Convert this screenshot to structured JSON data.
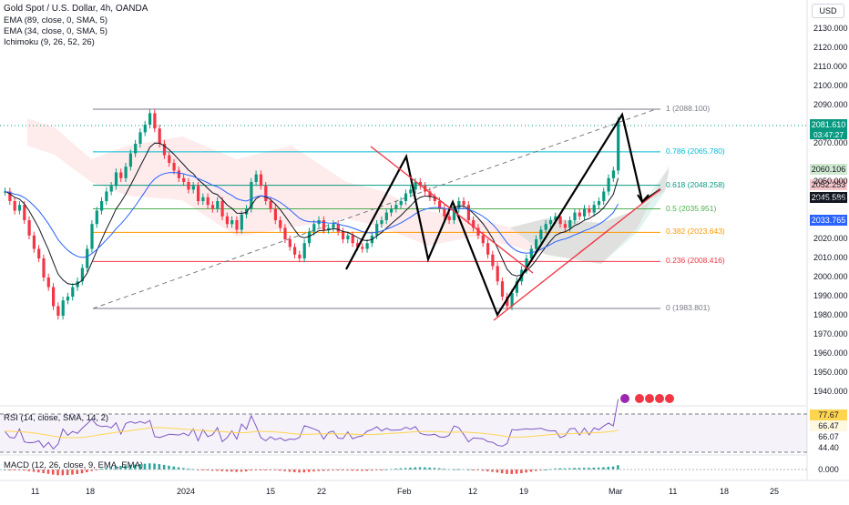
{
  "header": {
    "title": "Gold Spot / U.S. Dollar, 4h, OANDA",
    "currency": "USD",
    "indicators": [
      "EMA (89, close, 0, SMA, 5)",
      "EMA (34, close, 0, SMA, 5)",
      "Ichimoku (9, 26, 52, 26)"
    ]
  },
  "price_axis": {
    "labels": [
      "2130.000",
      "2120.000",
      "2110.000",
      "2100.000",
      "2090.000",
      "2070.000",
      "2050.000",
      "2040.000",
      "2020.000",
      "2010.000",
      "2000.000",
      "1990.000",
      "1980.000",
      "1970.000",
      "1960.000",
      "1950.000",
      "1940.000"
    ]
  },
  "price_tags": {
    "last": {
      "value": "2081.610",
      "timer": "03:47:27",
      "color": "#089981"
    },
    "green": {
      "value": "2060.106",
      "color": "#cfe8d0"
    },
    "red": {
      "value": "2052.253",
      "color": "#f7c6c8"
    },
    "black": {
      "value": "2045.586",
      "color": "#131722"
    },
    "blue": {
      "value": "2033.765",
      "color": "#2962ff"
    }
  },
  "time_axis": {
    "labels": [
      "11",
      "18",
      "2024",
      "15",
      "22",
      "Feb",
      "12",
      "19",
      "Mar",
      "11",
      "18",
      "25"
    ]
  },
  "rsi": {
    "label": "RSI (14, close, SMA, 14, 2)",
    "tags": {
      "value": "77.67",
      "sma": "66.47",
      "upper": "66.07",
      "lower": "44.40"
    }
  },
  "macd": {
    "label": "MACD (12, 26, close, 9, EMA, EMA)",
    "zero": "0.000"
  },
  "chart_data": {
    "type": "candlestick",
    "title": "Gold Spot / U.S. Dollar, 4h, OANDA",
    "ylim": [
      1937,
      2140
    ],
    "fibonacci": [
      {
        "level": "1",
        "price": 2088.1,
        "label": "1 (2088.100)",
        "color": "#787b86"
      },
      {
        "level": "0.786",
        "price": 2065.78,
        "label": "0.786 (2065.780)",
        "color": "#00bcd4"
      },
      {
        "level": "0.618",
        "price": 2048.258,
        "label": "0.618 (2048.258)",
        "color": "#089981"
      },
      {
        "level": "0.5",
        "price": 2035.951,
        "label": "0.5 (2035.951)",
        "color": "#4caf50"
      },
      {
        "level": "0.382",
        "price": 2023.643,
        "label": "0.382 (2023.643)",
        "color": "#ff9800"
      },
      {
        "level": "0.236",
        "price": 2008.416,
        "label": "0.236 (2008.416)",
        "color": "#f23645"
      },
      {
        "level": "0",
        "price": 1983.801,
        "label": "0 (1983.801)",
        "color": "#787b86"
      }
    ],
    "closes": [
      2045,
      2040,
      2035,
      2038,
      2030,
      2022,
      2015,
      2010,
      2000,
      1995,
      1985,
      1980,
      1988,
      1990,
      1995,
      1998,
      2005,
      2015,
      2028,
      2035,
      2040,
      2045,
      2048,
      2055,
      2052,
      2058,
      2065,
      2070,
      2076,
      2080,
      2086,
      2078,
      2070,
      2064,
      2060,
      2056,
      2052,
      2050,
      2046,
      2048,
      2040,
      2042,
      2038,
      2036,
      2040,
      2032,
      2028,
      2030,
      2025,
      2033,
      2036,
      2050,
      2054,
      2048,
      2040,
      2036,
      2030,
      2026,
      2020,
      2016,
      2012,
      2010,
      2018,
      2024,
      2028,
      2030,
      2025,
      2026,
      2028,
      2024,
      2020,
      2022,
      2018,
      2016,
      2015,
      2018,
      2022,
      2028,
      2030,
      2034,
      2036,
      2038,
      2040,
      2044,
      2046,
      2050,
      2048,
      2045,
      2042,
      2040,
      2036,
      2032,
      2030,
      2036,
      2040,
      2038,
      2030,
      2026,
      2022,
      2018,
      2012,
      2006,
      1998,
      1990,
      1985,
      1992,
      1998,
      2004,
      2010,
      2015,
      2020,
      2025,
      2028,
      2030,
      2032,
      2028,
      2026,
      2030,
      2034,
      2032,
      2036,
      2034,
      2038,
      2040,
      2045,
      2052,
      2056,
      2082
    ],
    "series": [
      {
        "name": "EMA (89, close, 0, SMA, 5)",
        "color": "#2962ff"
      },
      {
        "name": "EMA (34, close, 0, SMA, 5)",
        "color": "#131722"
      }
    ]
  }
}
